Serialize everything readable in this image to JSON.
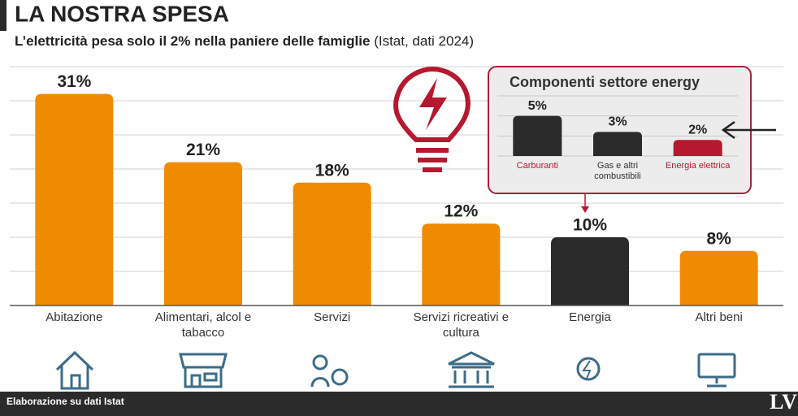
{
  "header": {
    "title": "LA NOSTRA SPESA",
    "subtitle": "L’elettricità pesa solo il 2% nella paniere delle famiglie",
    "subtitle_note": "(Istat, dati 2024)"
  },
  "chart_data": [
    {
      "type": "bar",
      "categories": [
        "Abitazione",
        "Alimentari, alcol e tabacco",
        "Servizi",
        "Servizi ricreativi e cultura",
        "Energia",
        "Altri beni"
      ],
      "values": [
        31,
        21,
        18,
        12,
        10,
        8
      ],
      "value_labels": [
        "31%",
        "21%",
        "18%",
        "12%",
        "10%",
        "8%"
      ],
      "colors": [
        "#f08a00",
        "#f08a00",
        "#f08a00",
        "#f08a00",
        "#2b2b2b",
        "#f08a00"
      ],
      "ylim": [
        0,
        35
      ],
      "yticks": [
        0,
        5,
        10,
        15,
        20,
        25,
        30,
        35
      ],
      "grid": true
    },
    {
      "type": "bar",
      "title": "Componenti settore energy",
      "categories": [
        "Carburanti",
        "Gas e altri combustibili",
        "Energia elettrica"
      ],
      "values": [
        5,
        3,
        2
      ],
      "value_labels": [
        "5%",
        "3%",
        "2%"
      ],
      "colors": [
        "#2b2b2b",
        "#2b2b2b",
        "#b5182f"
      ],
      "ylim": [
        0,
        7.5
      ],
      "yticks": [
        0,
        2.5,
        5,
        7.5
      ],
      "grid": true
    }
  ],
  "footer": {
    "source": "Elaborazione su dati Istat",
    "logo": "LV"
  }
}
